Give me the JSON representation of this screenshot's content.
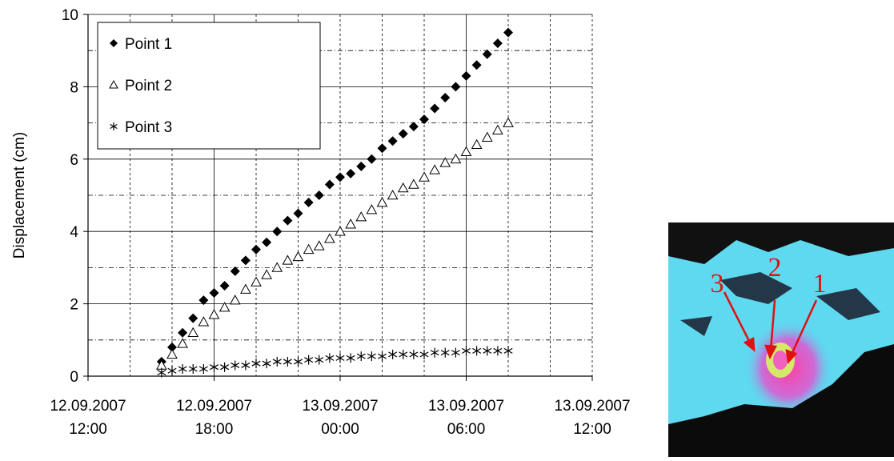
{
  "chart_data": {
    "type": "scatter",
    "y_label": "Displacement (cm)",
    "xlim": [
      "2007-09-12 12:00",
      "2007-09-13 12:00"
    ],
    "xticks": [
      {
        "value": "2007-09-12 12:00",
        "label": [
          "12.09.2007",
          "12:00"
        ]
      },
      {
        "value": "2007-09-12 18:00",
        "label": [
          "12.09.2007",
          "18:00"
        ]
      },
      {
        "value": "2007-09-13 00:00",
        "label": [
          "13.09.2007",
          "00:00"
        ]
      },
      {
        "value": "2007-09-13 06:00",
        "label": [
          "13.09.2007",
          "06:00"
        ]
      },
      {
        "value": "2007-09-13 12:00",
        "label": [
          "13.09.2007",
          "12:00"
        ]
      }
    ],
    "x_minor_ticks": [
      "2007-09-12 14:00",
      "2007-09-12 16:00",
      "2007-09-12 20:00",
      "2007-09-12 22:00",
      "2007-09-13 02:00",
      "2007-09-13 04:00",
      "2007-09-13 08:00",
      "2007-09-13 10:00"
    ],
    "ylim": [
      0,
      10
    ],
    "yticks": [
      0,
      2,
      4,
      6,
      8,
      10
    ],
    "y_minor_ticks": [
      1,
      3,
      5,
      7,
      9
    ],
    "grid": true,
    "x": [
      "2007-09-12 15:30",
      "2007-09-12 16:00",
      "2007-09-12 16:30",
      "2007-09-12 17:00",
      "2007-09-12 17:30",
      "2007-09-12 18:00",
      "2007-09-12 18:30",
      "2007-09-12 19:00",
      "2007-09-12 19:30",
      "2007-09-12 20:00",
      "2007-09-12 20:30",
      "2007-09-12 21:00",
      "2007-09-12 21:30",
      "2007-09-12 22:00",
      "2007-09-12 22:30",
      "2007-09-12 23:00",
      "2007-09-12 23:30",
      "2007-09-13 00:00",
      "2007-09-13 00:30",
      "2007-09-13 01:00",
      "2007-09-13 01:30",
      "2007-09-13 02:00",
      "2007-09-13 02:30",
      "2007-09-13 03:00",
      "2007-09-13 03:30",
      "2007-09-13 04:00",
      "2007-09-13 04:30",
      "2007-09-13 05:00",
      "2007-09-13 05:30",
      "2007-09-13 06:00",
      "2007-09-13 06:30",
      "2007-09-13 07:00",
      "2007-09-13 07:30",
      "2007-09-13 08:00"
    ],
    "legend": "upper left",
    "series": [
      {
        "name": "Point 1",
        "color": "#000000",
        "marker": "diamond",
        "values": [
          0.4,
          0.8,
          1.2,
          1.6,
          2.1,
          2.3,
          2.5,
          2.9,
          3.2,
          3.5,
          3.7,
          4.0,
          4.3,
          4.5,
          4.8,
          5.0,
          5.3,
          5.5,
          5.6,
          5.8,
          6.0,
          6.3,
          6.5,
          6.7,
          6.9,
          7.1,
          7.4,
          7.7,
          8.0,
          8.3,
          8.6,
          8.9,
          9.2,
          9.5
        ]
      },
      {
        "name": "Point 2",
        "color": "#000000",
        "marker": "triangle",
        "values": [
          0.3,
          0.6,
          0.9,
          1.2,
          1.5,
          1.7,
          1.9,
          2.1,
          2.4,
          2.6,
          2.8,
          3.0,
          3.2,
          3.3,
          3.5,
          3.6,
          3.8,
          4.0,
          4.2,
          4.4,
          4.6,
          4.8,
          5.0,
          5.2,
          5.3,
          5.5,
          5.7,
          5.9,
          6.0,
          6.2,
          6.4,
          6.6,
          6.8,
          7.0
        ]
      },
      {
        "name": "Point 3",
        "color": "#000000",
        "marker": "asterisk",
        "values": [
          0.1,
          0.15,
          0.2,
          0.2,
          0.2,
          0.25,
          0.25,
          0.3,
          0.3,
          0.35,
          0.35,
          0.4,
          0.4,
          0.4,
          0.45,
          0.45,
          0.5,
          0.5,
          0.5,
          0.55,
          0.55,
          0.55,
          0.6,
          0.6,
          0.6,
          0.6,
          0.65,
          0.65,
          0.65,
          0.7,
          0.7,
          0.7,
          0.7,
          0.7
        ]
      }
    ]
  },
  "image_labels": [
    "1",
    "2",
    "3"
  ]
}
